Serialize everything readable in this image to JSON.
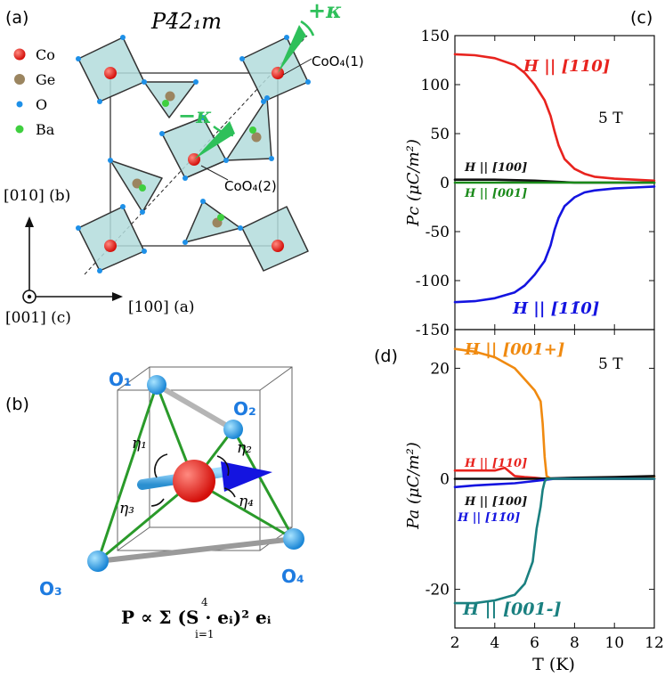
{
  "panel_a": {
    "label": "(a)",
    "space_group": "P4̄2₁m",
    "legend": [
      {
        "name": "Co",
        "color": "#e8231e"
      },
      {
        "name": "Ge",
        "color": "#9b8560"
      },
      {
        "name": "O",
        "color": "#1e90e8"
      },
      {
        "name": "Ba",
        "color": "#3fcf3f"
      }
    ],
    "plus_kappa": "+κ",
    "minus_kappa": "−κ",
    "coo4_1": "CoO₄(1)",
    "coo4_2": "CoO₄(2)",
    "axis_b": "[010] (b)",
    "axis_a": "[100] (a)",
    "axis_c": "[001] (c)"
  },
  "panel_b": {
    "label": "(b)",
    "o1": "O₁",
    "o2": "O₂",
    "o3": "O₃",
    "o4": "O₄",
    "eta1": "η₁",
    "eta2": "η₂",
    "eta3": "η₃",
    "eta4": "η₄",
    "formula": "P ∝ Σ (S · eᵢ)² eᵢ",
    "sum_top": "4",
    "sum_bottom": "i=1"
  },
  "chart_data": [
    {
      "panel": "(c)",
      "type": "line",
      "field_label": "5 T",
      "ylabel": "Pc (μC/m²)",
      "ylim": [
        -150,
        150
      ],
      "xlim": [
        2,
        12
      ],
      "yticks": [
        -150,
        -100,
        -50,
        0,
        50,
        100,
        150
      ],
      "series": [
        {
          "name": "H || [110]",
          "color": "#e8231e",
          "x": [
            2,
            3,
            4,
            5,
            5.5,
            6,
            6.5,
            6.8,
            7,
            7.2,
            7.5,
            8,
            8.5,
            9,
            10,
            11,
            12
          ],
          "y": [
            131,
            130,
            127,
            120,
            112,
            100,
            84,
            68,
            52,
            38,
            24,
            14,
            9,
            6,
            4,
            3,
            2
          ]
        },
        {
          "name": "H || [100]",
          "color": "#111111",
          "x": [
            2,
            4,
            6,
            7,
            8,
            10,
            12
          ],
          "y": [
            3,
            3,
            2,
            1,
            0,
            0,
            0
          ]
        },
        {
          "name": "H || [001]",
          "color": "#1a8a1a",
          "x": [
            2,
            4,
            6,
            8,
            10,
            12
          ],
          "y": [
            0,
            0,
            0,
            0,
            0,
            0
          ]
        },
        {
          "name": "H || [11̄0]",
          "color": "#1414e0",
          "x": [
            2,
            3,
            4,
            5,
            5.5,
            6,
            6.5,
            6.8,
            7,
            7.2,
            7.5,
            8,
            8.5,
            9,
            10,
            11,
            12
          ],
          "y": [
            -122,
            -121,
            -118,
            -112,
            -105,
            -94,
            -80,
            -64,
            -48,
            -36,
            -24,
            -15,
            -10,
            -8,
            -6,
            -5,
            -4
          ]
        }
      ]
    },
    {
      "panel": "(d)",
      "type": "line",
      "field_label": "5 T",
      "xlabel": "T (K)",
      "ylabel": "Pa (μC/m²)",
      "ylim": [
        -27,
        27
      ],
      "xlim": [
        2,
        12
      ],
      "yticks": [
        -20,
        0,
        20
      ],
      "xticks": [
        2,
        4,
        6,
        8,
        10,
        12
      ],
      "series": [
        {
          "name": "H || [001+]",
          "color": "#f08a10",
          "x": [
            2,
            3,
            4,
            5,
            5.5,
            6,
            6.3,
            6.4,
            6.5,
            6.6,
            6.8,
            7,
            8,
            9,
            10,
            11,
            12
          ],
          "y": [
            23.5,
            23,
            22,
            20,
            18,
            16,
            14,
            10,
            4,
            0.5,
            0,
            0,
            0,
            0,
            0,
            0,
            0.3
          ]
        },
        {
          "name": "H || [110]",
          "color": "#e8231e",
          "x": [
            2,
            3,
            4,
            4.5,
            5,
            5.5,
            6,
            6.5,
            7,
            8,
            10,
            12
          ],
          "y": [
            1.5,
            1.5,
            1.5,
            2,
            0.5,
            0.3,
            0.2,
            0,
            0,
            0,
            0,
            0
          ]
        },
        {
          "name": "H || [100]",
          "color": "#111111",
          "x": [
            2,
            4,
            6,
            8,
            10,
            12
          ],
          "y": [
            0,
            0,
            0,
            0.2,
            0.3,
            0.5
          ]
        },
        {
          "name": "H || [11̄0]",
          "color": "#1414e0",
          "x": [
            2,
            3,
            4,
            5,
            6,
            7,
            8,
            10,
            12
          ],
          "y": [
            -1.5,
            -1.2,
            -1,
            -0.8,
            -0.4,
            0,
            0,
            0,
            0
          ]
        },
        {
          "name": "H || [001-]",
          "color": "#1a8080",
          "x": [
            2,
            3,
            4,
            5,
            5.5,
            5.9,
            6.1,
            6.3,
            6.4,
            6.5,
            6.6,
            7,
            8,
            10,
            12
          ],
          "y": [
            -22.5,
            -22.5,
            -22,
            -21,
            -19,
            -15,
            -9,
            -5,
            -2,
            -0.5,
            0,
            0,
            0,
            0,
            0
          ]
        }
      ]
    }
  ]
}
